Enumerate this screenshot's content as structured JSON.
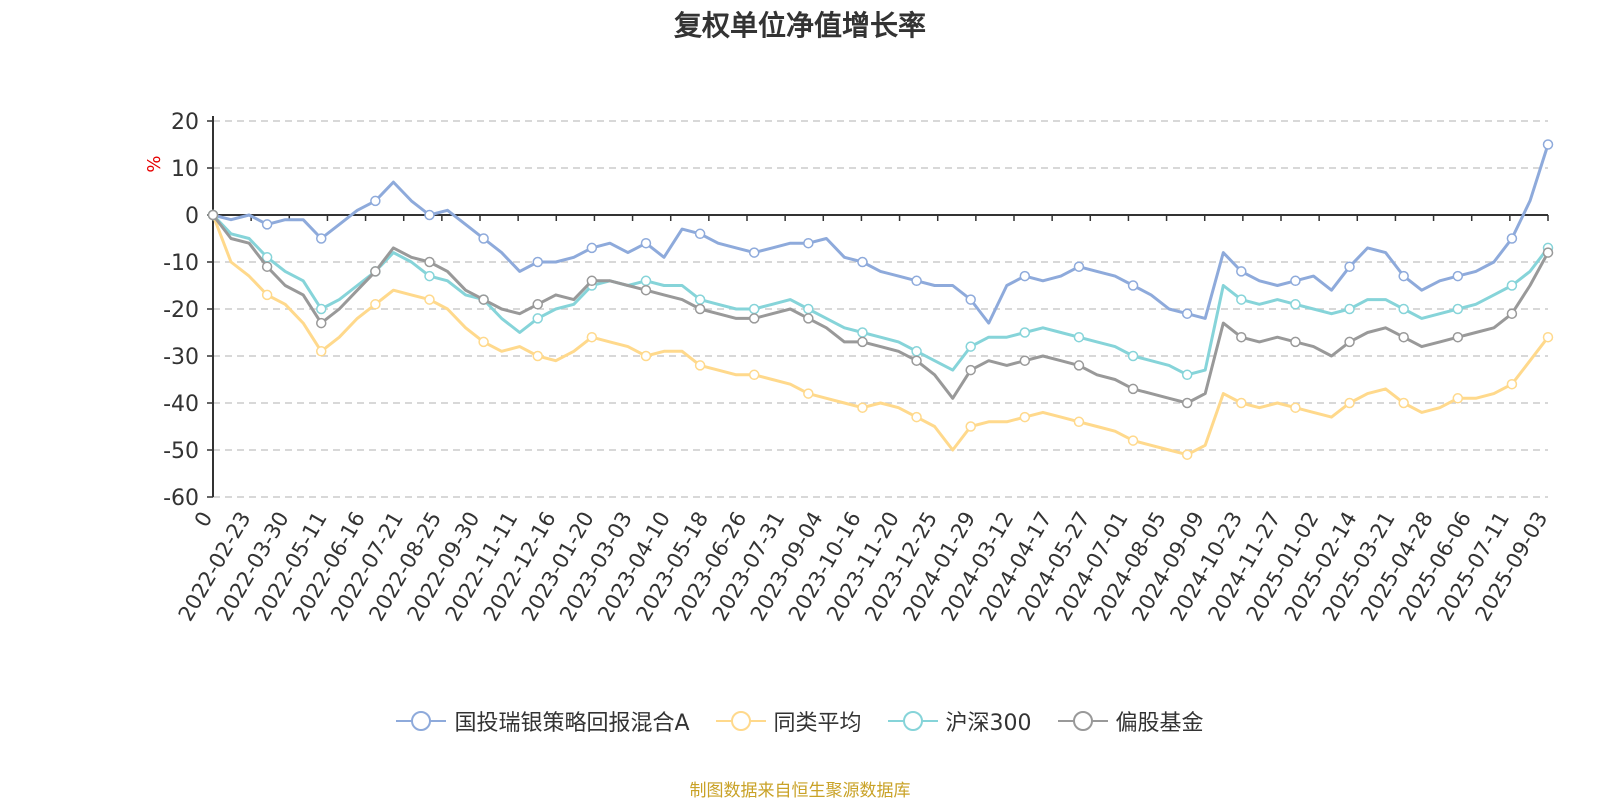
{
  "chart_data": {
    "type": "line",
    "title": "复权单位净值增长率",
    "ylabel": "%",
    "ylim": [
      -60,
      20
    ],
    "yticks": [
      20,
      10,
      0,
      -10,
      -20,
      -30,
      -40,
      -50,
      -60
    ],
    "grid": true,
    "legend_position": "bottom",
    "x_tick_labels": [
      "0",
      "2022-02-23",
      "2022-03-30",
      "2022-05-11",
      "2022-06-16",
      "2022-07-21",
      "2022-08-25",
      "2022-09-30",
      "2022-11-11",
      "2022-12-16",
      "2023-01-20",
      "2023-03-03",
      "2023-04-10",
      "2023-05-18",
      "2023-06-26",
      "2023-07-31",
      "2023-09-04",
      "2023-10-16",
      "2023-11-20",
      "2023-12-25",
      "2024-01-29",
      "2024-03-12",
      "2024-04-17",
      "2024-05-27",
      "2024-07-01",
      "2024-08-05",
      "2024-09-09",
      "2024-10-23",
      "2024-11-27",
      "2025-01-02",
      "2025-02-14",
      "2025-03-21",
      "2025-04-28",
      "2025-06-06",
      "2025-07-11",
      "2025-09-03"
    ],
    "series": [
      {
        "name": "国投瑞银策略回报混合A",
        "color": "#8eaadb",
        "values": [
          0,
          -1,
          0,
          -2,
          -1,
          -1,
          -5,
          -2,
          1,
          3,
          7,
          3,
          0,
          1,
          -2,
          -5,
          -8,
          -12,
          -10,
          -10,
          -9,
          -7,
          -6,
          -8,
          -6,
          -9,
          -3,
          -4,
          -6,
          -7,
          -8,
          -7,
          -6,
          -6,
          -5,
          -9,
          -10,
          -12,
          -13,
          -14,
          -15,
          -15,
          -18,
          -23,
          -15,
          -13,
          -14,
          -13,
          -11,
          -12,
          -13,
          -15,
          -17,
          -20,
          -21,
          -22,
          -8,
          -12,
          -14,
          -15,
          -14,
          -13,
          -16,
          -11,
          -7,
          -8,
          -13,
          -16,
          -14,
          -13,
          -12,
          -10,
          -5,
          3,
          15
        ]
      },
      {
        "name": "同类平均",
        "color": "#ffd98c",
        "values": [
          0,
          -10,
          -13,
          -17,
          -19,
          -23,
          -29,
          -26,
          -22,
          -19,
          -16,
          -17,
          -18,
          -20,
          -24,
          -27,
          -29,
          -28,
          -30,
          -31,
          -29,
          -26,
          -27,
          -28,
          -30,
          -29,
          -29,
          -32,
          -33,
          -34,
          -34,
          -35,
          -36,
          -38,
          -39,
          -40,
          -41,
          -40,
          -41,
          -43,
          -45,
          -50,
          -45,
          -44,
          -44,
          -43,
          -42,
          -43,
          -44,
          -45,
          -46,
          -48,
          -49,
          -50,
          -51,
          -49,
          -38,
          -40,
          -41,
          -40,
          -41,
          -42,
          -43,
          -40,
          -38,
          -37,
          -40,
          -42,
          -41,
          -39,
          -39,
          -38,
          -36,
          -31,
          -26
        ]
      },
      {
        "name": "沪深300",
        "color": "#86d4d9",
        "values": [
          0,
          -4,
          -5,
          -9,
          -12,
          -14,
          -20,
          -18,
          -15,
          -12,
          -8,
          -10,
          -13,
          -14,
          -17,
          -18,
          -22,
          -25,
          -22,
          -20,
          -19,
          -15,
          -14,
          -15,
          -14,
          -15,
          -15,
          -18,
          -19,
          -20,
          -20,
          -19,
          -18,
          -20,
          -22,
          -24,
          -25,
          -26,
          -27,
          -29,
          -31,
          -33,
          -28,
          -26,
          -26,
          -25,
          -24,
          -25,
          -26,
          -27,
          -28,
          -30,
          -31,
          -32,
          -34,
          -33,
          -15,
          -18,
          -19,
          -18,
          -19,
          -20,
          -21,
          -20,
          -18,
          -18,
          -20,
          -22,
          -21,
          -20,
          -19,
          -17,
          -15,
          -12,
          -7
        ]
      },
      {
        "name": "偏股基金",
        "color": "#999999",
        "values": [
          0,
          -5,
          -6,
          -11,
          -15,
          -17,
          -23,
          -20,
          -16,
          -12,
          -7,
          -9,
          -10,
          -12,
          -16,
          -18,
          -20,
          -21,
          -19,
          -17,
          -18,
          -14,
          -14,
          -15,
          -16,
          -17,
          -18,
          -20,
          -21,
          -22,
          -22,
          -21,
          -20,
          -22,
          -24,
          -27,
          -27,
          -28,
          -29,
          -31,
          -34,
          -39,
          -33,
          -31,
          -32,
          -31,
          -30,
          -31,
          -32,
          -34,
          -35,
          -37,
          -38,
          -39,
          -40,
          -38,
          -23,
          -26,
          -27,
          -26,
          -27,
          -28,
          -30,
          -27,
          -25,
          -24,
          -26,
          -28,
          -27,
          -26,
          -25,
          -24,
          -21,
          -15,
          -8
        ]
      }
    ]
  },
  "source_note": "制图数据来自恒生聚源数据库"
}
